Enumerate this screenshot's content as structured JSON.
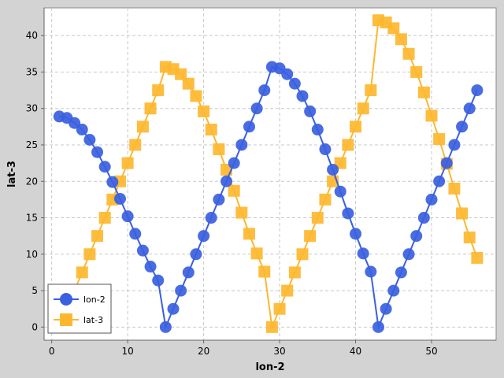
{
  "chart_data": {
    "type": "line",
    "xlabel": "lon-2",
    "ylabel": "lat-3",
    "xlim": [
      -1,
      58.5
    ],
    "ylim": [
      -1.8,
      43.8
    ],
    "xticks": [
      0,
      10,
      20,
      30,
      40,
      50
    ],
    "yticks": [
      0,
      5,
      10,
      15,
      20,
      25,
      30,
      35,
      40
    ],
    "grid": true,
    "legend_position": "bottom-left",
    "series": [
      {
        "name": "lon-2",
        "color": "#3a5fe0",
        "marker": "circle",
        "x": [
          1,
          2,
          3,
          4,
          5,
          6,
          7,
          8,
          9,
          10,
          11,
          12,
          13,
          14,
          15,
          16,
          17,
          18,
          19,
          20,
          21,
          22,
          23,
          24,
          25,
          26,
          27,
          28,
          29,
          30,
          31,
          32,
          33,
          34,
          35,
          36,
          37,
          38,
          39,
          40,
          41,
          42,
          43,
          44,
          45,
          46,
          47,
          48,
          49,
          50,
          51,
          52,
          53,
          54,
          55,
          56
        ],
        "y": [
          28.9,
          28.7,
          28.0,
          27.1,
          25.7,
          24.0,
          22.0,
          19.9,
          17.6,
          15.2,
          12.8,
          10.5,
          8.3,
          6.4,
          0.0,
          2.5,
          5.0,
          7.5,
          10.0,
          12.5,
          15.0,
          17.5,
          20.0,
          22.5,
          25.0,
          27.5,
          30.0,
          32.5,
          35.7,
          35.5,
          34.7,
          33.4,
          31.7,
          29.6,
          27.1,
          24.4,
          21.6,
          18.6,
          15.6,
          12.8,
          10.1,
          7.6,
          0.0,
          2.5,
          5.0,
          7.5,
          10.0,
          12.5,
          15.0,
          17.5,
          20.0,
          22.5,
          25.0,
          27.5,
          30.0,
          32.5
        ]
      },
      {
        "name": "lat-3",
        "color": "#fdb72f",
        "marker": "square",
        "x": [
          3,
          4,
          5,
          6,
          7,
          8,
          9,
          10,
          11,
          12,
          13,
          14,
          15,
          16,
          17,
          18,
          19,
          20,
          21,
          22,
          23,
          24,
          25,
          26,
          27,
          28,
          29,
          30,
          31,
          32,
          33,
          34,
          35,
          36,
          37,
          38,
          39,
          40,
          41,
          42,
          43,
          44,
          45,
          46,
          47,
          48,
          49,
          50,
          51,
          52,
          53,
          54,
          55,
          56
        ],
        "y": [
          5.0,
          7.5,
          10.0,
          12.5,
          15.0,
          17.5,
          20.0,
          22.5,
          25.0,
          27.5,
          30.0,
          32.5,
          35.7,
          35.4,
          34.7,
          33.4,
          31.7,
          29.6,
          27.1,
          24.4,
          21.6,
          18.7,
          15.7,
          12.8,
          10.1,
          7.6,
          0.0,
          2.5,
          5.0,
          7.5,
          10.0,
          12.5,
          15.0,
          17.5,
          20.0,
          22.5,
          25.0,
          27.5,
          30.0,
          32.5,
          42.1,
          41.8,
          41.0,
          39.5,
          37.5,
          35.0,
          32.2,
          29.0,
          25.8,
          22.4,
          19.0,
          15.6,
          12.3,
          9.5
        ]
      }
    ]
  }
}
